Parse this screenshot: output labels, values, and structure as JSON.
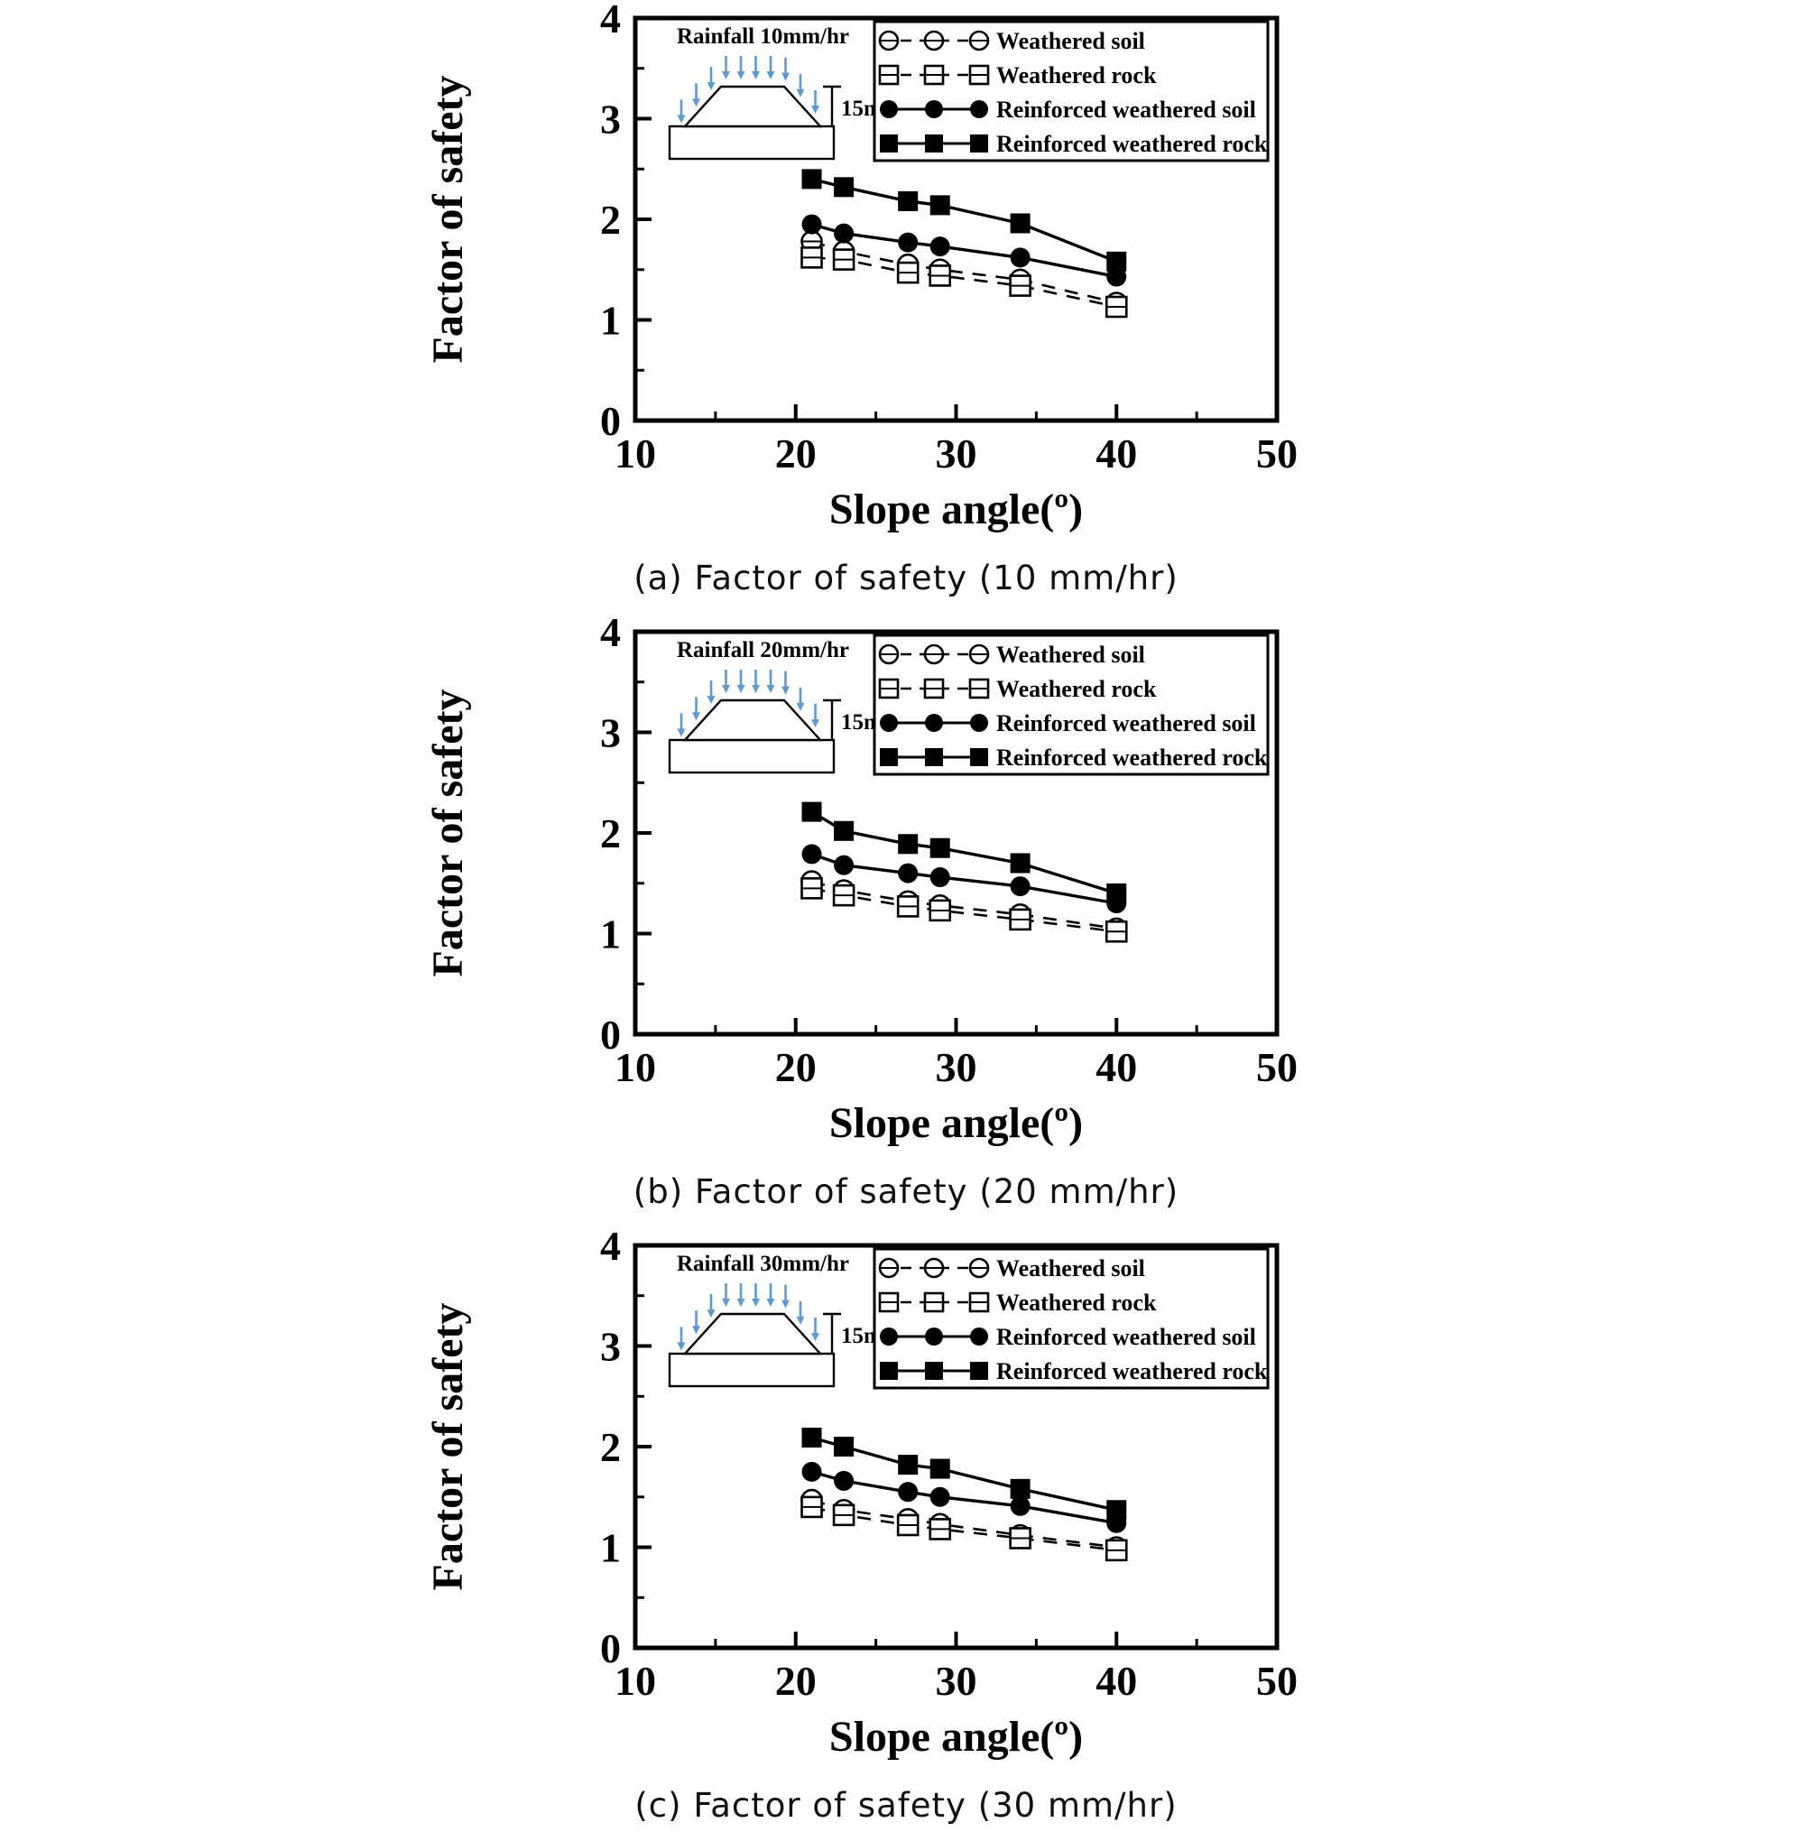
{
  "colors": {
    "axis": "#000000",
    "rain_arrow": "#5b9bd5",
    "marker_fill": "#000000",
    "background": "#ffffff"
  },
  "chart_data": [
    {
      "type": "line",
      "caption": "(a) Factor of safety (10 mm/hr)",
      "xlabel": "Slope angle(º)",
      "ylabel": "Factor of safety",
      "xlim": [
        10,
        50
      ],
      "ylim": [
        0,
        4
      ],
      "xticks": [
        10,
        20,
        30,
        40,
        50
      ],
      "yticks": [
        0,
        1,
        2,
        3,
        4
      ],
      "xminor": [
        15,
        25,
        35,
        45
      ],
      "yminor": [
        0.5,
        1.5,
        2.5,
        3.5
      ],
      "legend_position": "top-right",
      "grid": false,
      "inset": {
        "rainfall_label": "Rainfall 10mm/hr",
        "height_label": "15m"
      },
      "x": [
        21,
        23,
        27,
        29,
        34,
        40
      ],
      "series": [
        {
          "name": "Weathered soil",
          "marker": "open-circle",
          "line": "dashed",
          "values": [
            1.78,
            1.68,
            1.55,
            1.5,
            1.4,
            1.17
          ]
        },
        {
          "name": "Weathered rock",
          "marker": "open-square",
          "line": "dashed",
          "values": [
            1.62,
            1.6,
            1.47,
            1.44,
            1.34,
            1.13
          ]
        },
        {
          "name": "Reinforced weathered soil",
          "marker": "filled-circle",
          "line": "solid",
          "values": [
            1.95,
            1.86,
            1.77,
            1.73,
            1.62,
            1.43
          ]
        },
        {
          "name": "Reinforced weathered rock",
          "marker": "filled-square",
          "line": "solid",
          "values": [
            2.4,
            2.32,
            2.18,
            2.14,
            1.96,
            1.58
          ]
        }
      ]
    },
    {
      "type": "line",
      "caption": "(b) Factor of safety (20 mm/hr)",
      "xlabel": "Slope angle(º)",
      "ylabel": "Factor of safety",
      "xlim": [
        10,
        50
      ],
      "ylim": [
        0,
        4
      ],
      "xticks": [
        10,
        20,
        30,
        40,
        50
      ],
      "yticks": [
        0,
        1,
        2,
        3,
        4
      ],
      "xminor": [
        15,
        25,
        35,
        45
      ],
      "yminor": [
        0.5,
        1.5,
        2.5,
        3.5
      ],
      "legend_position": "top-right",
      "grid": false,
      "inset": {
        "rainfall_label": "Rainfall 20mm/hr",
        "height_label": "15m"
      },
      "x": [
        21,
        23,
        27,
        29,
        34,
        40
      ],
      "series": [
        {
          "name": "Weathered soil",
          "marker": "open-circle",
          "line": "dashed",
          "values": [
            1.52,
            1.43,
            1.32,
            1.28,
            1.19,
            1.05
          ]
        },
        {
          "name": "Weathered rock",
          "marker": "open-square",
          "line": "dashed",
          "values": [
            1.45,
            1.38,
            1.27,
            1.23,
            1.14,
            1.02
          ]
        },
        {
          "name": "Reinforced weathered soil",
          "marker": "filled-circle",
          "line": "solid",
          "values": [
            1.79,
            1.68,
            1.6,
            1.56,
            1.47,
            1.3
          ]
        },
        {
          "name": "Reinforced weathered rock",
          "marker": "filled-square",
          "line": "solid",
          "values": [
            2.21,
            2.02,
            1.89,
            1.85,
            1.7,
            1.4
          ]
        }
      ]
    },
    {
      "type": "line",
      "caption": "(c) Factor of safety (30 mm/hr)",
      "xlabel": "Slope angle(º)",
      "ylabel": "Factor of safety",
      "xlim": [
        10,
        50
      ],
      "ylim": [
        0,
        4
      ],
      "xticks": [
        10,
        20,
        30,
        40,
        50
      ],
      "yticks": [
        0,
        1,
        2,
        3,
        4
      ],
      "xminor": [
        15,
        25,
        35,
        45
      ],
      "yminor": [
        0.5,
        1.5,
        2.5,
        3.5
      ],
      "legend_position": "top-right",
      "grid": false,
      "inset": {
        "rainfall_label": "Rainfall 30mm/hr",
        "height_label": "15m"
      },
      "x": [
        21,
        23,
        27,
        29,
        34,
        40
      ],
      "series": [
        {
          "name": "Weathered soil",
          "marker": "open-circle",
          "line": "dashed",
          "values": [
            1.47,
            1.37,
            1.28,
            1.23,
            1.12,
            1.0
          ]
        },
        {
          "name": "Weathered rock",
          "marker": "open-square",
          "line": "dashed",
          "values": [
            1.4,
            1.32,
            1.22,
            1.18,
            1.09,
            0.97
          ]
        },
        {
          "name": "Reinforced weathered soil",
          "marker": "filled-circle",
          "line": "solid",
          "values": [
            1.75,
            1.66,
            1.55,
            1.5,
            1.41,
            1.24
          ]
        },
        {
          "name": "Reinforced weathered rock",
          "marker": "filled-square",
          "line": "solid",
          "values": [
            2.09,
            2.0,
            1.82,
            1.78,
            1.58,
            1.37
          ]
        }
      ]
    }
  ]
}
